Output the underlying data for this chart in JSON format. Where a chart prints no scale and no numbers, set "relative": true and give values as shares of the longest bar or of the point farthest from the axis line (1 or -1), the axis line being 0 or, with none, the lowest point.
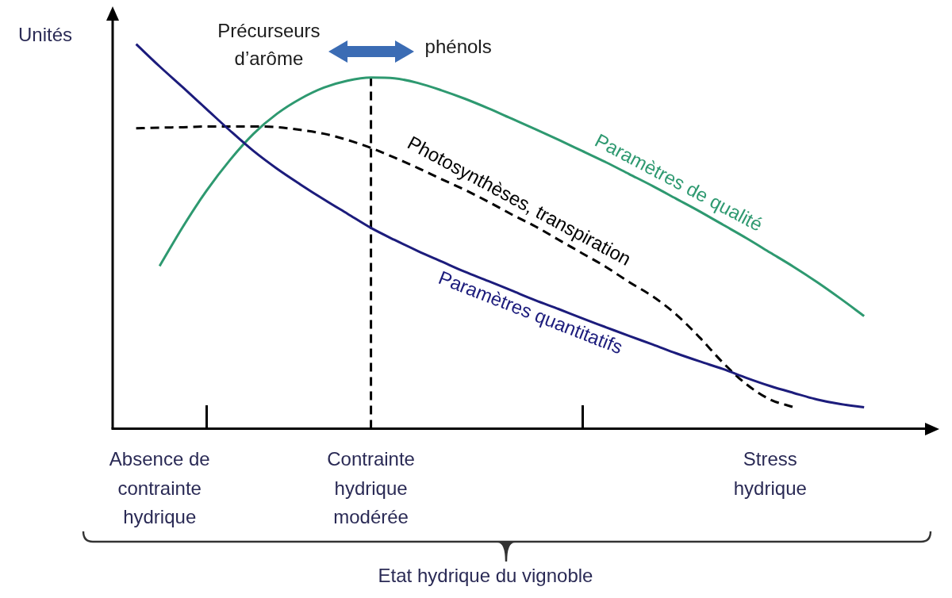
{
  "chart_data": {
    "type": "line",
    "relative": true,
    "ylabel": "Unités",
    "xlabel": "Etat hydrique du vignoble",
    "tick_labels": "x",
    "marker": "none",
    "categories": [
      null,
      null,
      "Absence de contrainte hydrique",
      null,
      null,
      null,
      null,
      null,
      null,
      null,
      null,
      "Contrainte hydrique modérée",
      null,
      null,
      null,
      null,
      null,
      null,
      null,
      null,
      null,
      null,
      null,
      null,
      null,
      null,
      null,
      null,
      "Stress hydrique",
      null,
      null,
      null,
      null,
      null,
      null,
      null
    ],
    "series": [
      {
        "name": "Paramètres quantitatifs",
        "color": "#1c1c7c",
        "values": [
          null,
          1,
          0.942,
          0.887,
          0.831,
          0.775,
          0.722,
          0.676,
          0.635,
          0.596,
          0.559,
          0.522,
          0.491,
          0.462,
          0.435,
          0.408,
          0.384,
          0.359,
          0.334,
          0.311,
          0.287,
          0.264,
          0.241,
          0.219,
          0.196,
          0.175,
          0.155,
          0.132,
          0.111,
          0.093,
          0.076,
          0.064,
          0.056,
          null,
          null,
          null
        ]
      },
      {
        "name": "Paramètres de qualité",
        "color": "#2e9970",
        "values": [
          null,
          null,
          0.423,
          0.526,
          0.619,
          0.699,
          0.767,
          0.819,
          0.858,
          0.887,
          0.905,
          0.913,
          0.911,
          0.899,
          0.88,
          0.858,
          0.833,
          0.806,
          0.779,
          0.751,
          0.722,
          0.693,
          0.662,
          0.631,
          0.598,
          0.565,
          0.53,
          0.495,
          0.458,
          0.421,
          0.381,
          0.338,
          0.293,
          null,
          null,
          null
        ]
      },
      {
        "name": "Photosynthèses, transpiration",
        "color": "#000000",
        "line_style": "dashed",
        "values": [
          null,
          0.781,
          0.783,
          0.784,
          0.786,
          0.786,
          0.786,
          0.784,
          0.777,
          0.767,
          0.751,
          0.73,
          0.705,
          0.678,
          0.649,
          0.621,
          0.59,
          0.557,
          0.526,
          0.491,
          0.456,
          0.421,
          0.381,
          0.344,
          0.297,
          0.237,
          0.171,
          0.115,
          0.076,
          0.056,
          null,
          null,
          null,
          null,
          null,
          null
        ]
      }
    ],
    "ref_lines": [
      {
        "axis": "x",
        "value": "Contrainte hydrique modérée",
        "color": "#000000",
        "line_style": "dashed"
      }
    ],
    "annotations": [
      "Précurseurs d’arôme",
      "phénols"
    ]
  }
}
